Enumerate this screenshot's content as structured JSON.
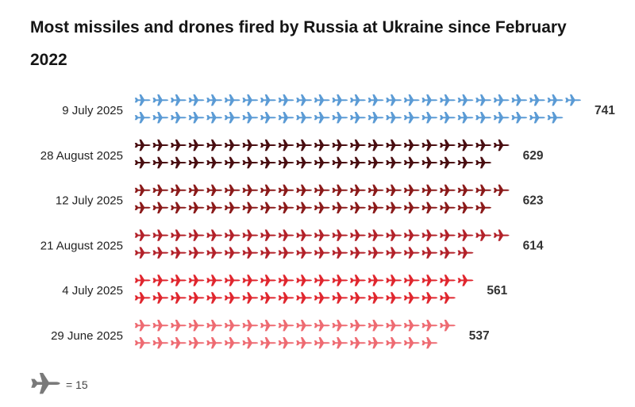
{
  "chart_data": {
    "type": "bar",
    "title": "Most missiles and drones fired by Russia at Ukraine since February 2022",
    "categories": [
      "9 July 2025",
      "28 August 2025",
      "12 July 2025",
      "21 August 2025",
      "4 July 2025",
      "29 June 2025"
    ],
    "values": [
      741,
      629,
      623,
      614,
      561,
      537
    ],
    "colors": [
      "#5b9bd5",
      "#4a0f12",
      "#8b1a1a",
      "#b3222a",
      "#e0262e",
      "#ee6b72"
    ],
    "icon": "plane-icon",
    "units_per_icon": 15,
    "key": {
      "icon": "plane-icon",
      "icon_color": "#7a7a7a",
      "text": "= 15"
    }
  }
}
